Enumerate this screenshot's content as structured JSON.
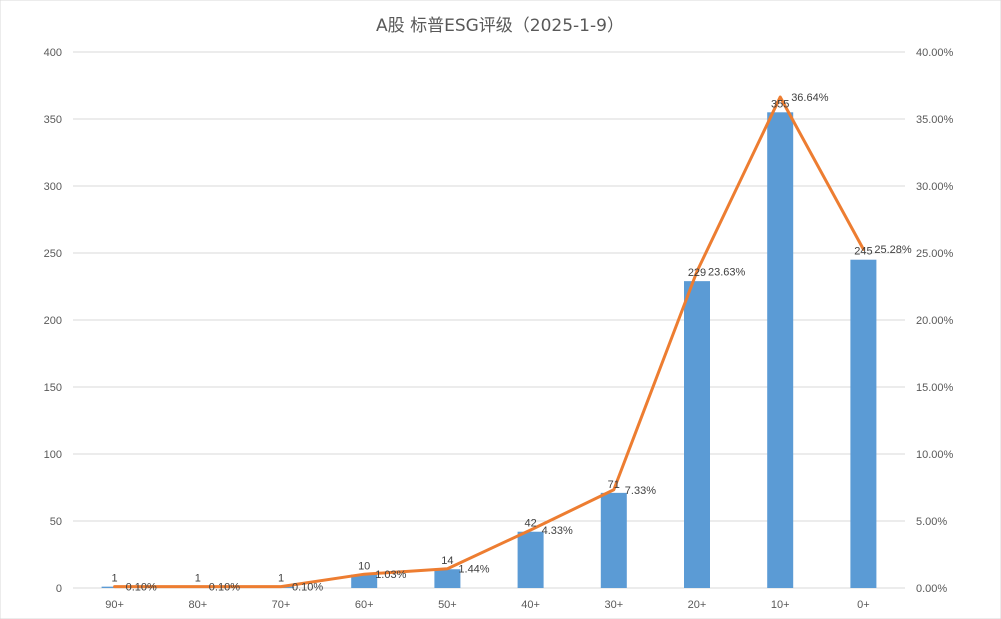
{
  "chart_data": {
    "type": "bar",
    "title": "A股 标普ESG评级（2025-1-9）",
    "categories": [
      "90+",
      "80+",
      "70+",
      "60+",
      "50+",
      "40+",
      "30+",
      "20+",
      "10+",
      "0+"
    ],
    "series": [
      {
        "type": "bar",
        "axis": "left",
        "values": [
          1,
          1,
          1,
          10,
          14,
          42,
          71,
          229,
          355,
          245
        ],
        "labels": [
          "1",
          "1",
          "1",
          "10",
          "14",
          "42",
          "71",
          "229",
          "355",
          "245"
        ],
        "color": "#5b9bd5"
      },
      {
        "type": "line",
        "axis": "right",
        "values": [
          0.1,
          0.1,
          0.1,
          1.03,
          1.44,
          4.33,
          7.33,
          23.63,
          36.64,
          25.28
        ],
        "labels": [
          "0.10%",
          "0.10%",
          "0.10%",
          "1.03%",
          "1.44%",
          "4.33%",
          "7.33%",
          "23.63%",
          "36.64%",
          "25.28%"
        ],
        "color": "#ed7d31"
      }
    ],
    "y_left": {
      "min": 0,
      "max": 400,
      "ticks": [
        0,
        50,
        100,
        150,
        200,
        250,
        300,
        350,
        400
      ],
      "tick_labels": [
        "0",
        "50",
        "100",
        "150",
        "200",
        "250",
        "300",
        "350",
        "400"
      ]
    },
    "y_right": {
      "min": 0,
      "max": 40,
      "ticks": [
        0,
        5,
        10,
        15,
        20,
        25,
        30,
        35,
        40
      ],
      "tick_labels": [
        "0.00%",
        "5.00%",
        "10.00%",
        "15.00%",
        "20.00%",
        "25.00%",
        "30.00%",
        "35.00%",
        "40.00%"
      ]
    },
    "grid": true,
    "legend": "none",
    "colors": {
      "gridline": "#d9d9d9",
      "text": "#595959"
    }
  }
}
